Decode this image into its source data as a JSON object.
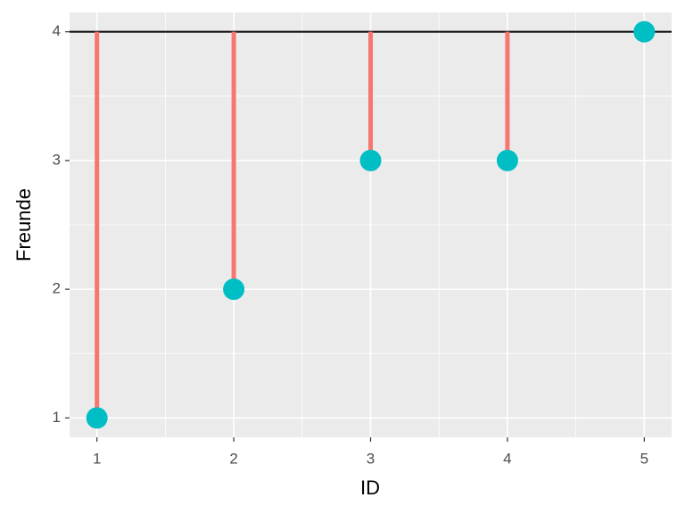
{
  "chart_data": {
    "type": "scatter",
    "x": [
      1,
      2,
      3,
      4,
      5
    ],
    "values": [
      1,
      2,
      3,
      3,
      4
    ],
    "color": "#00BFC4",
    "segment_color": "#F8766D",
    "reference_line": 4,
    "reference_color": "#000000",
    "xlabel": "ID",
    "ylabel": "Freunde",
    "xlim": [
      0.8,
      5.2
    ],
    "ylim": [
      0.85,
      4.15
    ],
    "xticks": [
      1,
      2,
      3,
      4,
      5
    ],
    "yticks": [
      1,
      2,
      3,
      4
    ],
    "grid": true
  }
}
